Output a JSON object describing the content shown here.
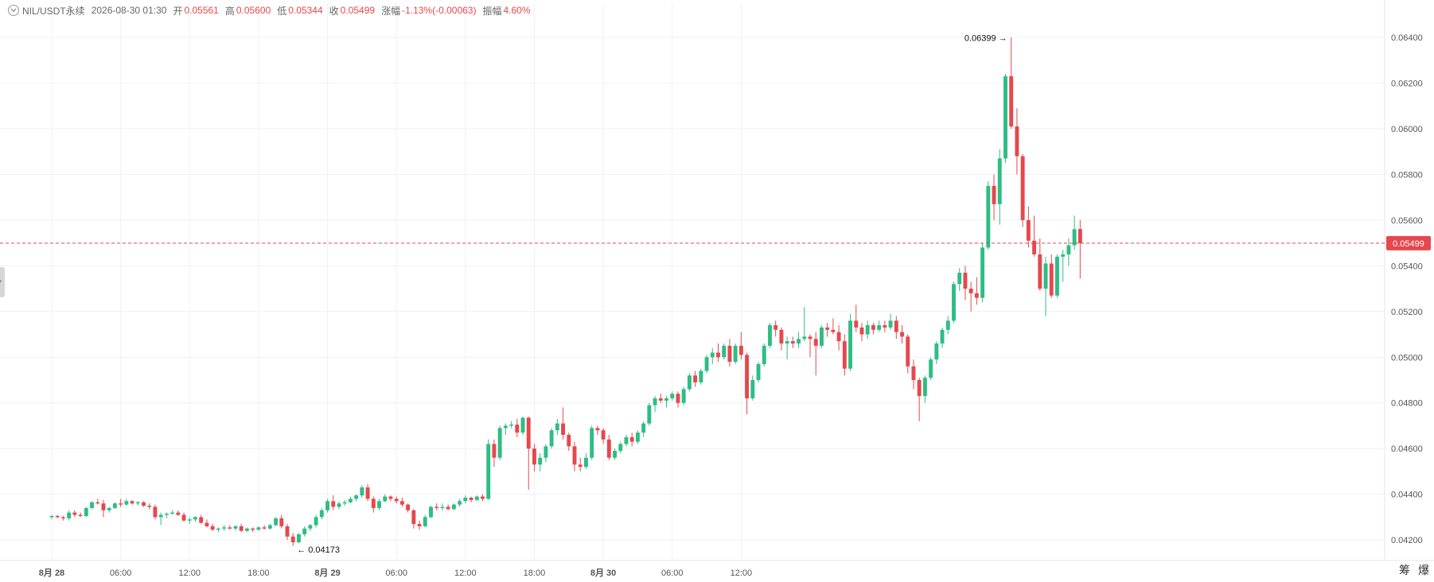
{
  "header": {
    "symbol": "NIL/USDT永续",
    "datetime": "2026-08-30 01:30",
    "open_label": "开",
    "open": "0.05561",
    "high_label": "高",
    "high": "0.05600",
    "low_label": "低",
    "low": "0.05344",
    "close_label": "收",
    "close": "0.05499",
    "change_label": "涨幅",
    "change": "-1.13%(-0.00063)",
    "amplitude_label": "振幅",
    "amplitude": "4.60%"
  },
  "corner_buttons": {
    "btn1": "筹",
    "btn2": "爆"
  },
  "colors": {
    "up": "#2ebd85",
    "down": "#e5484d",
    "grid": "#f1f1f1",
    "axis_text": "#555555",
    "price_line": "#e5484d"
  },
  "chart_data": {
    "type": "candlestick",
    "y_ticks": [
      "0.04200",
      "0.04400",
      "0.04600",
      "0.04800",
      "0.05000",
      "0.05200",
      "0.05400",
      "0.05600",
      "0.05800",
      "0.06000",
      "0.06200",
      "0.06400"
    ],
    "x_ticks": [
      "8月 28",
      "06:00",
      "12:00",
      "18:00",
      "8月 29",
      "06:00",
      "12:00",
      "18:00",
      "8月 30",
      "06:00",
      "12:00"
    ],
    "ylim": [
      0.0411,
      0.0648
    ],
    "xlim": [
      -9,
      232
    ],
    "last_price": "0.05499",
    "max_marker": "0.06399",
    "min_marker": "0.04173",
    "grid": true,
    "interval": "30m",
    "candles": [
      [
        0.043,
        0.0431,
        0.0429,
        0.04305
      ],
      [
        0.04305,
        0.0431,
        0.04295,
        0.043
      ],
      [
        0.043,
        0.04305,
        0.04285,
        0.04295
      ],
      [
        0.04295,
        0.0433,
        0.04285,
        0.0432
      ],
      [
        0.0432,
        0.0433,
        0.043,
        0.0431
      ],
      [
        0.0431,
        0.0432,
        0.043,
        0.04305
      ],
      [
        0.04305,
        0.04345,
        0.043,
        0.0434
      ],
      [
        0.0434,
        0.0437,
        0.04335,
        0.04365
      ],
      [
        0.04365,
        0.0438,
        0.04355,
        0.0436
      ],
      [
        0.0436,
        0.04375,
        0.043,
        0.0433
      ],
      [
        0.0433,
        0.04345,
        0.0432,
        0.0434
      ],
      [
        0.0434,
        0.04365,
        0.04335,
        0.0436
      ],
      [
        0.0436,
        0.0438,
        0.04345,
        0.04355
      ],
      [
        0.04355,
        0.0438,
        0.0435,
        0.0437
      ],
      [
        0.0437,
        0.04375,
        0.04355,
        0.0436
      ],
      [
        0.0436,
        0.0437,
        0.0435,
        0.04365
      ],
      [
        0.04365,
        0.0437,
        0.04345,
        0.0435
      ],
      [
        0.0435,
        0.0436,
        0.04335,
        0.04345
      ],
      [
        0.04345,
        0.04355,
        0.0429,
        0.043
      ],
      [
        0.043,
        0.0432,
        0.04265,
        0.0431
      ],
      [
        0.0431,
        0.0432,
        0.04295,
        0.04315
      ],
      [
        0.04315,
        0.0433,
        0.0431,
        0.0432
      ],
      [
        0.0432,
        0.0433,
        0.04305,
        0.0431
      ],
      [
        0.0431,
        0.0432,
        0.0428,
        0.04285
      ],
      [
        0.04285,
        0.043,
        0.0427,
        0.0429
      ],
      [
        0.0429,
        0.04305,
        0.0428,
        0.043
      ],
      [
        0.043,
        0.0431,
        0.0427,
        0.04275
      ],
      [
        0.04275,
        0.0429,
        0.04255,
        0.0426
      ],
      [
        0.0426,
        0.0427,
        0.0424,
        0.04245
      ],
      [
        0.04245,
        0.04255,
        0.04235,
        0.0425
      ],
      [
        0.0425,
        0.04265,
        0.0424,
        0.04255
      ],
      [
        0.04255,
        0.04265,
        0.04245,
        0.0425
      ],
      [
        0.0425,
        0.04265,
        0.0424,
        0.0426
      ],
      [
        0.0426,
        0.0427,
        0.04235,
        0.0424
      ],
      [
        0.0424,
        0.04255,
        0.04235,
        0.0425
      ],
      [
        0.0425,
        0.04255,
        0.04235,
        0.04245
      ],
      [
        0.04245,
        0.0426,
        0.0424,
        0.04255
      ],
      [
        0.04255,
        0.04265,
        0.04245,
        0.0425
      ],
      [
        0.0425,
        0.0427,
        0.04245,
        0.04265
      ],
      [
        0.04265,
        0.043,
        0.0426,
        0.04295
      ],
      [
        0.04295,
        0.0431,
        0.0425,
        0.0426
      ],
      [
        0.0426,
        0.0427,
        0.042,
        0.04215
      ],
      [
        0.04215,
        0.0423,
        0.04173,
        0.0419
      ],
      [
        0.0419,
        0.0423,
        0.04185,
        0.04225
      ],
      [
        0.04225,
        0.0426,
        0.04215,
        0.0425
      ],
      [
        0.0425,
        0.0427,
        0.0424,
        0.04265
      ],
      [
        0.04265,
        0.0431,
        0.04255,
        0.043
      ],
      [
        0.043,
        0.0434,
        0.0429,
        0.0433
      ],
      [
        0.0433,
        0.0438,
        0.0432,
        0.0437
      ],
      [
        0.0437,
        0.04395,
        0.0433,
        0.04345
      ],
      [
        0.04345,
        0.0437,
        0.04335,
        0.0436
      ],
      [
        0.0436,
        0.04375,
        0.0435,
        0.04365
      ],
      [
        0.04365,
        0.0439,
        0.0436,
        0.0438
      ],
      [
        0.0438,
        0.044,
        0.0437,
        0.04395
      ],
      [
        0.04395,
        0.0444,
        0.04385,
        0.0443
      ],
      [
        0.0443,
        0.04445,
        0.0437,
        0.0438
      ],
      [
        0.0438,
        0.0439,
        0.0432,
        0.0434
      ],
      [
        0.0434,
        0.0438,
        0.0433,
        0.0437
      ],
      [
        0.0437,
        0.044,
        0.04365,
        0.0439
      ],
      [
        0.0439,
        0.04395,
        0.0437,
        0.0438
      ],
      [
        0.0438,
        0.0439,
        0.0436,
        0.0437
      ],
      [
        0.0437,
        0.04385,
        0.04345,
        0.04355
      ],
      [
        0.04355,
        0.0436,
        0.0432,
        0.0433
      ],
      [
        0.0433,
        0.04335,
        0.0425,
        0.0427
      ],
      [
        0.0427,
        0.04285,
        0.04245,
        0.0426
      ],
      [
        0.0426,
        0.0431,
        0.04255,
        0.043
      ],
      [
        0.043,
        0.0435,
        0.04295,
        0.04345
      ],
      [
        0.04345,
        0.0436,
        0.0433,
        0.0434
      ],
      [
        0.0434,
        0.0436,
        0.0433,
        0.04345
      ],
      [
        0.04345,
        0.04355,
        0.0433,
        0.04335
      ],
      [
        0.04335,
        0.0436,
        0.0433,
        0.04355
      ],
      [
        0.04355,
        0.0438,
        0.04345,
        0.0437
      ],
      [
        0.0437,
        0.04395,
        0.0436,
        0.04385
      ],
      [
        0.04385,
        0.0439,
        0.04365,
        0.04375
      ],
      [
        0.04375,
        0.04395,
        0.0437,
        0.0439
      ],
      [
        0.0439,
        0.044,
        0.0437,
        0.0438
      ],
      [
        0.0438,
        0.0464,
        0.04375,
        0.0462
      ],
      [
        0.0462,
        0.0464,
        0.0452,
        0.0456
      ],
      [
        0.0456,
        0.047,
        0.0455,
        0.0469
      ],
      [
        0.0469,
        0.0471,
        0.0466,
        0.047
      ],
      [
        0.047,
        0.0472,
        0.0469,
        0.04705
      ],
      [
        0.04705,
        0.0473,
        0.0465,
        0.0467
      ],
      [
        0.0467,
        0.0474,
        0.0466,
        0.04735
      ],
      [
        0.04735,
        0.0474,
        0.0442,
        0.046
      ],
      [
        0.046,
        0.0462,
        0.045,
        0.0453
      ],
      [
        0.0453,
        0.0458,
        0.045,
        0.0456
      ],
      [
        0.0456,
        0.0462,
        0.0454,
        0.0461
      ],
      [
        0.0461,
        0.0469,
        0.046,
        0.0468
      ],
      [
        0.0468,
        0.0473,
        0.0466,
        0.0471
      ],
      [
        0.0471,
        0.0478,
        0.0464,
        0.0466
      ],
      [
        0.0466,
        0.0467,
        0.0459,
        0.0461
      ],
      [
        0.0461,
        0.0463,
        0.045,
        0.0453
      ],
      [
        0.0453,
        0.0456,
        0.045,
        0.0452
      ],
      [
        0.0452,
        0.0458,
        0.0451,
        0.0456
      ],
      [
        0.0456,
        0.047,
        0.0455,
        0.0469
      ],
      [
        0.0469,
        0.047,
        0.0466,
        0.0468
      ],
      [
        0.0468,
        0.0469,
        0.0462,
        0.0464
      ],
      [
        0.0464,
        0.0466,
        0.0455,
        0.0456
      ],
      [
        0.0456,
        0.046,
        0.0455,
        0.0459
      ],
      [
        0.0459,
        0.0463,
        0.0458,
        0.0462
      ],
      [
        0.0462,
        0.0466,
        0.0461,
        0.0465
      ],
      [
        0.0465,
        0.0467,
        0.0461,
        0.0463
      ],
      [
        0.0463,
        0.0468,
        0.0462,
        0.0467
      ],
      [
        0.0467,
        0.0472,
        0.0465,
        0.0471
      ],
      [
        0.0471,
        0.048,
        0.047,
        0.0479
      ],
      [
        0.0479,
        0.0483,
        0.0476,
        0.0482
      ],
      [
        0.0482,
        0.0484,
        0.048,
        0.0481
      ],
      [
        0.0481,
        0.0483,
        0.0478,
        0.0482
      ],
      [
        0.0482,
        0.0485,
        0.0481,
        0.0484
      ],
      [
        0.0484,
        0.0485,
        0.0478,
        0.048
      ],
      [
        0.048,
        0.0487,
        0.0479,
        0.0486
      ],
      [
        0.0486,
        0.0493,
        0.0485,
        0.0492
      ],
      [
        0.0492,
        0.0494,
        0.0487,
        0.0489
      ],
      [
        0.0489,
        0.0495,
        0.0488,
        0.0494
      ],
      [
        0.0494,
        0.0501,
        0.0493,
        0.05
      ],
      [
        0.05,
        0.0504,
        0.0497,
        0.0502
      ],
      [
        0.0502,
        0.0506,
        0.0498,
        0.05
      ],
      [
        0.05,
        0.0506,
        0.0499,
        0.0505
      ],
      [
        0.0505,
        0.0508,
        0.0496,
        0.0498
      ],
      [
        0.0498,
        0.0506,
        0.0497,
        0.0505
      ],
      [
        0.0505,
        0.0511,
        0.0499,
        0.0501
      ],
      [
        0.0501,
        0.0502,
        0.0475,
        0.0482
      ],
      [
        0.0482,
        0.0492,
        0.0481,
        0.049
      ],
      [
        0.049,
        0.0498,
        0.0489,
        0.0497
      ],
      [
        0.0497,
        0.0506,
        0.0496,
        0.0505
      ],
      [
        0.0505,
        0.0515,
        0.0504,
        0.0514
      ],
      [
        0.0514,
        0.0516,
        0.0509,
        0.0512
      ],
      [
        0.0512,
        0.0513,
        0.0503,
        0.0506
      ],
      [
        0.0506,
        0.0509,
        0.0499,
        0.0507
      ],
      [
        0.0507,
        0.0509,
        0.0504,
        0.0506
      ],
      [
        0.0506,
        0.0511,
        0.0504,
        0.0508
      ],
      [
        0.0508,
        0.0522,
        0.0507,
        0.0509
      ],
      [
        0.0509,
        0.051,
        0.05,
        0.0508
      ],
      [
        0.0508,
        0.0511,
        0.0492,
        0.0505
      ],
      [
        0.0505,
        0.0514,
        0.0504,
        0.0513
      ],
      [
        0.0513,
        0.0515,
        0.0509,
        0.0512
      ],
      [
        0.0512,
        0.0517,
        0.051,
        0.0511
      ],
      [
        0.0511,
        0.0514,
        0.0503,
        0.0507
      ],
      [
        0.0507,
        0.051,
        0.0492,
        0.0495
      ],
      [
        0.0495,
        0.0519,
        0.0494,
        0.0516
      ],
      [
        0.0516,
        0.0523,
        0.0511,
        0.0513
      ],
      [
        0.0513,
        0.0515,
        0.0507,
        0.051
      ],
      [
        0.051,
        0.0516,
        0.0508,
        0.0514
      ],
      [
        0.0514,
        0.0515,
        0.051,
        0.0512
      ],
      [
        0.0512,
        0.0516,
        0.0511,
        0.0514
      ],
      [
        0.0514,
        0.0516,
        0.0511,
        0.0513
      ],
      [
        0.0513,
        0.0519,
        0.0512,
        0.0516
      ],
      [
        0.0516,
        0.0518,
        0.0508,
        0.0511
      ],
      [
        0.0511,
        0.0514,
        0.0506,
        0.0509
      ],
      [
        0.0509,
        0.051,
        0.0493,
        0.0496
      ],
      [
        0.0496,
        0.0499,
        0.0486,
        0.049
      ],
      [
        0.049,
        0.0491,
        0.0472,
        0.0483
      ],
      [
        0.0483,
        0.0492,
        0.048,
        0.0491
      ],
      [
        0.0491,
        0.05,
        0.049,
        0.0499
      ],
      [
        0.0499,
        0.0507,
        0.0497,
        0.0506
      ],
      [
        0.0506,
        0.0513,
        0.0504,
        0.0512
      ],
      [
        0.0512,
        0.0518,
        0.051,
        0.0516
      ],
      [
        0.0516,
        0.0533,
        0.0515,
        0.0532
      ],
      [
        0.0532,
        0.0539,
        0.0529,
        0.0537
      ],
      [
        0.0537,
        0.054,
        0.0525,
        0.053
      ],
      [
        0.053,
        0.0533,
        0.052,
        0.0528
      ],
      [
        0.0528,
        0.0535,
        0.0523,
        0.0526
      ],
      [
        0.0526,
        0.055,
        0.0524,
        0.0548
      ],
      [
        0.0548,
        0.0577,
        0.0547,
        0.0575
      ],
      [
        0.0575,
        0.058,
        0.056,
        0.0567
      ],
      [
        0.0567,
        0.0591,
        0.0558,
        0.0587
      ],
      [
        0.0587,
        0.0624,
        0.0585,
        0.0623
      ],
      [
        0.0623,
        0.06399,
        0.06,
        0.0601
      ],
      [
        0.0601,
        0.0609,
        0.058,
        0.0588
      ],
      [
        0.0588,
        0.0589,
        0.0557,
        0.056
      ],
      [
        0.056,
        0.0566,
        0.0548,
        0.0551
      ],
      [
        0.0551,
        0.0562,
        0.0544,
        0.0545
      ],
      [
        0.0545,
        0.0552,
        0.0529,
        0.053
      ],
      [
        0.053,
        0.0544,
        0.0518,
        0.0541
      ],
      [
        0.0541,
        0.0545,
        0.0526,
        0.0527
      ],
      [
        0.0527,
        0.0545,
        0.0526,
        0.0544
      ],
      [
        0.0544,
        0.0547,
        0.0533,
        0.0545
      ],
      [
        0.0545,
        0.0552,
        0.054,
        0.0549
      ],
      [
        0.0549,
        0.0562,
        0.0547,
        0.0556
      ],
      [
        0.05561,
        0.056,
        0.05344,
        0.05499
      ]
    ]
  }
}
